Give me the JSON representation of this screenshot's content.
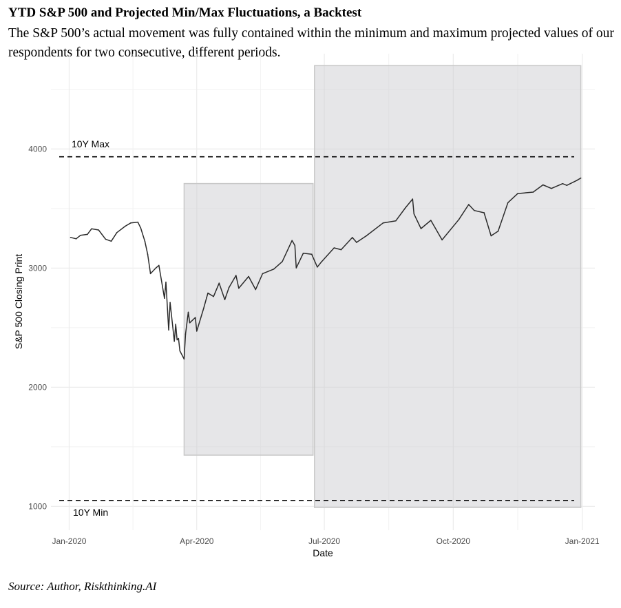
{
  "title": "YTD S&P 500 and Projected Min/Max Fluctuations, a Backtest",
  "subtitle": "The S&P 500’s actual movement was fully contained within the minimum and maximum projected values of our respondents for two consecutive, different periods.",
  "source": "Source: Author, Riskthinking.AI",
  "chart_data": {
    "type": "line",
    "xlabel": "Date",
    "ylabel": "S&P 500 Closing Print",
    "x_ticks": [
      "Jan-2020",
      "Apr-2020",
      "Jul-2020",
      "Oct-2020",
      "Jan-2021"
    ],
    "x_tick_dates": [
      "2020-01-01",
      "2020-04-01",
      "2020-07-01",
      "2020-10-01",
      "2021-01-01"
    ],
    "y_ticks": [
      1000,
      2000,
      3000,
      4000
    ],
    "xlim": [
      "2019-12-19",
      "2021-01-10"
    ],
    "ylim": [
      800,
      4800
    ],
    "grid": true,
    "reference_lines": [
      {
        "label": "10Y Max",
        "y": 3935,
        "style": "dashed"
      },
      {
        "label": "10Y Min",
        "y": 1050,
        "style": "dashed"
      }
    ],
    "projection_bands": [
      {
        "start": "2020-03-23",
        "end": "2020-06-23",
        "min": 1430,
        "max": 3710
      },
      {
        "start": "2020-06-24",
        "end": "2020-12-31",
        "min": 990,
        "max": 4700
      }
    ],
    "series": [
      {
        "x": [
          "2020-01-02",
          "2020-01-06",
          "2020-01-09",
          "2020-01-14",
          "2020-01-17",
          "2020-01-22",
          "2020-01-27",
          "2020-01-31",
          "2020-02-04",
          "2020-02-10",
          "2020-02-14",
          "2020-02-19",
          "2020-02-21",
          "2020-02-24",
          "2020-02-26",
          "2020-02-28",
          "2020-03-03",
          "2020-03-05",
          "2020-03-09",
          "2020-03-10",
          "2020-03-12",
          "2020-03-13",
          "2020-03-16",
          "2020-03-17",
          "2020-03-18",
          "2020-03-19",
          "2020-03-20",
          "2020-03-23",
          "2020-03-24",
          "2020-03-26",
          "2020-03-27",
          "2020-03-31",
          "2020-04-01",
          "2020-04-06",
          "2020-04-08",
          "2020-04-09",
          "2020-04-13",
          "2020-04-17",
          "2020-04-21",
          "2020-04-24",
          "2020-04-29",
          "2020-05-01",
          "2020-05-08",
          "2020-05-13",
          "2020-05-18",
          "2020-05-26",
          "2020-06-01",
          "2020-06-08",
          "2020-06-10",
          "2020-06-11",
          "2020-06-16",
          "2020-06-22",
          "2020-06-26",
          "2020-06-29",
          "2020-07-08",
          "2020-07-13",
          "2020-07-21",
          "2020-07-24",
          "2020-07-31",
          "2020-08-12",
          "2020-08-21",
          "2020-08-28",
          "2020-09-02",
          "2020-09-03",
          "2020-09-08",
          "2020-09-15",
          "2020-09-23",
          "2020-10-05",
          "2020-10-12",
          "2020-10-16",
          "2020-10-23",
          "2020-10-28",
          "2020-11-02",
          "2020-11-09",
          "2020-11-16",
          "2020-11-27",
          "2020-12-04",
          "2020-12-10",
          "2020-12-18",
          "2020-12-21",
          "2020-12-28",
          "2020-12-31"
        ],
        "y": [
          3258,
          3246,
          3275,
          3283,
          3330,
          3320,
          3243,
          3226,
          3298,
          3352,
          3380,
          3386,
          3338,
          3226,
          3116,
          2954,
          3003,
          3023,
          2747,
          2882,
          2481,
          2711,
          2386,
          2529,
          2398,
          2409,
          2305,
          2237,
          2447,
          2630,
          2541,
          2585,
          2471,
          2664,
          2750,
          2790,
          2762,
          2874,
          2736,
          2837,
          2939,
          2831,
          2930,
          2820,
          2954,
          2992,
          3055,
          3232,
          3190,
          3002,
          3125,
          3117,
          3009,
          3053,
          3170,
          3155,
          3257,
          3216,
          3271,
          3380,
          3397,
          3508,
          3580,
          3455,
          3332,
          3401,
          3237,
          3408,
          3534,
          3484,
          3465,
          3271,
          3310,
          3550,
          3626,
          3638,
          3699,
          3669,
          3709,
          3695,
          3735,
          3756
        ]
      }
    ]
  }
}
